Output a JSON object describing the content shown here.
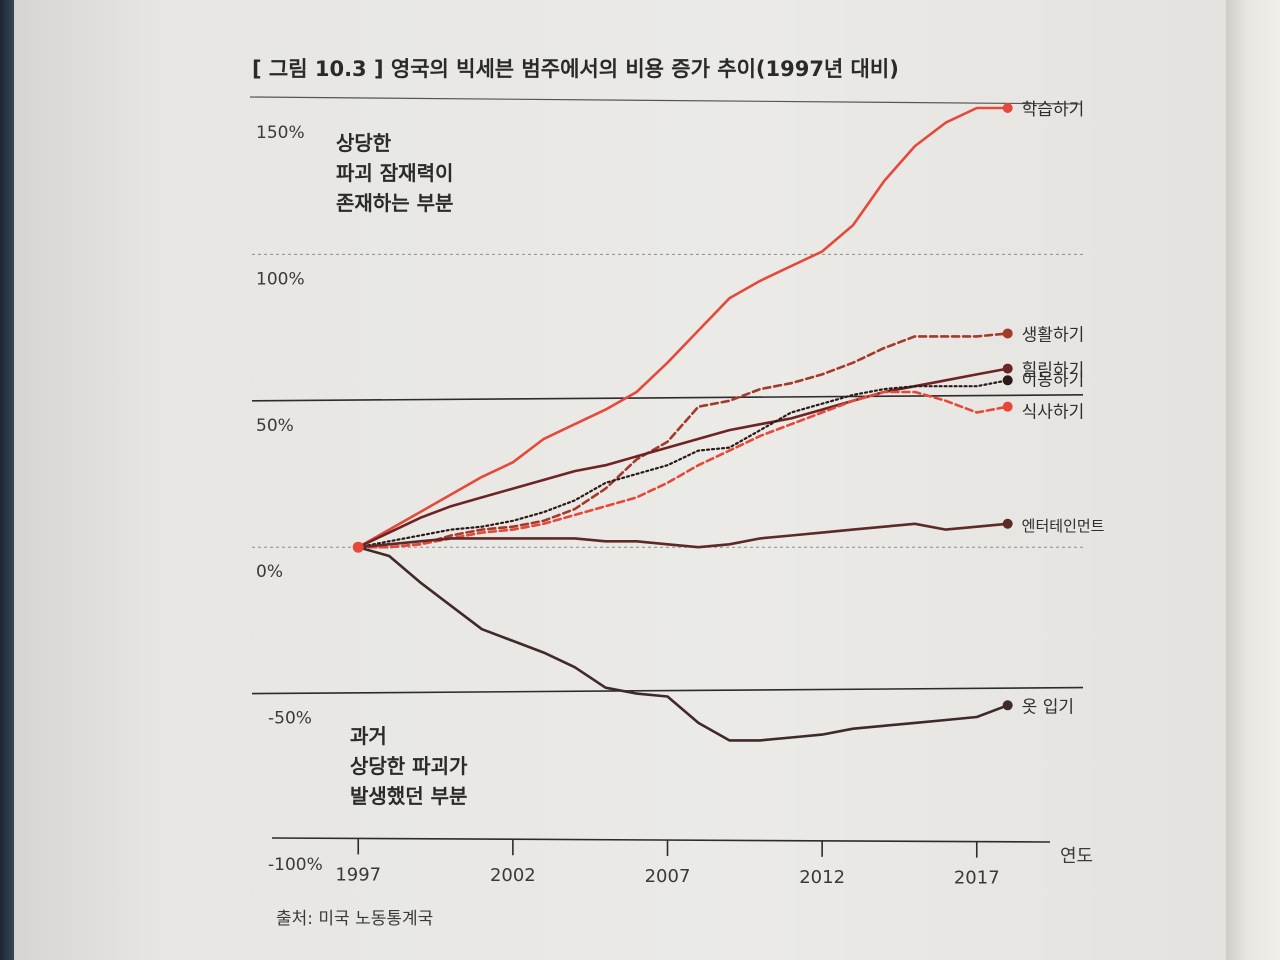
{
  "figure_title": "[ 그림 10.3 ] 영국의 빅세븐 범주에서의 비용 증가 추이(1997년 대비)",
  "source_note": "출처: 미국 노동통계국",
  "annotations": {
    "upper": [
      "상당한",
      "파괴 잠재력이",
      "존재하는 부분"
    ],
    "lower": [
      "과거",
      "상당한 파괴가",
      "발생했던 부분"
    ]
  },
  "colors": {
    "learning": "#e5493a",
    "living": "#a33a2c",
    "healing": "#6e2424",
    "moving": "#2b1a18",
    "eating": "#e5493a",
    "entertainment": "#5d2a25",
    "clothing": "#3e2a2a",
    "axis": "#2c2c2c",
    "grid": "#8d8d8d"
  },
  "chart_data": {
    "type": "line",
    "title": "[ 그림 10.3 ] 영국의 빅세븐 범주에서의 비용 증가 추이(1997년 대비)",
    "xlabel": "연도",
    "ylabel": "",
    "xlim": [
      1993.5,
      2020.5
    ],
    "ylim": [
      -100,
      150
    ],
    "x_ticks": [
      1997,
      2002,
      2007,
      2012,
      2017
    ],
    "x_tick_labels": [
      "1997",
      "2002",
      "2007",
      "2012",
      "2017"
    ],
    "y_ticks": [
      150,
      100,
      50,
      0,
      -50,
      -100
    ],
    "y_tick_labels": [
      "150%",
      "100%",
      "50%",
      "0%",
      "-50%",
      "-100%"
    ],
    "reference_lines": [
      {
        "value": 100,
        "style": "dotted"
      },
      {
        "value": 0,
        "style": "dotted"
      },
      {
        "value": 50,
        "style": "solid"
      },
      {
        "value": -50,
        "style": "solid"
      }
    ],
    "series": [
      {
        "name": "학습하기",
        "color_key": "learning",
        "dash": "solid",
        "x": [
          1997,
          1998,
          1999,
          2000,
          2001,
          2002,
          2003,
          2004,
          2005,
          2006,
          2007,
          2008,
          2009,
          2010,
          2011,
          2012,
          2013,
          2014,
          2015,
          2016,
          2017,
          2018
        ],
        "y": [
          0,
          6,
          12,
          18,
          24,
          29,
          37,
          42,
          47,
          53,
          63,
          74,
          85,
          91,
          96,
          101,
          110,
          125,
          137,
          145,
          150,
          150
        ]
      },
      {
        "name": "생활하기",
        "color_key": "living",
        "dash": "dashed",
        "x": [
          1997,
          1998,
          1999,
          2000,
          2001,
          2002,
          2003,
          2004,
          2005,
          2006,
          2007,
          2008,
          2009,
          2010,
          2011,
          2012,
          2013,
          2014,
          2015,
          2016,
          2017,
          2018
        ],
        "y": [
          0,
          0,
          1,
          4,
          6,
          7,
          9,
          13,
          20,
          30,
          36,
          48,
          50,
          54,
          56,
          59,
          63,
          68,
          72,
          72,
          72,
          73
        ]
      },
      {
        "name": "힐링하기",
        "color_key": "healing",
        "dash": "solid",
        "x": [
          1997,
          1998,
          1999,
          2000,
          2001,
          2002,
          2003,
          2004,
          2005,
          2006,
          2007,
          2008,
          2009,
          2010,
          2011,
          2012,
          2013,
          2014,
          2015,
          2016,
          2017,
          2018
        ],
        "y": [
          0,
          5,
          10,
          14,
          17,
          20,
          23,
          26,
          28,
          31,
          34,
          37,
          40,
          42,
          44,
          47,
          50,
          53,
          55,
          57,
          59,
          61
        ]
      },
      {
        "name": "이동하기",
        "color_key": "moving",
        "dash": "dotted",
        "x": [
          1997,
          1998,
          1999,
          2000,
          2001,
          2002,
          2003,
          2004,
          2005,
          2006,
          2007,
          2008,
          2009,
          2010,
          2011,
          2012,
          2013,
          2014,
          2015,
          2016,
          2017,
          2018
        ],
        "y": [
          0,
          2,
          4,
          6,
          7,
          9,
          12,
          16,
          22,
          25,
          28,
          33,
          34,
          40,
          46,
          49,
          52,
          54,
          55,
          55,
          55,
          57
        ]
      },
      {
        "name": "식사하기",
        "color_key": "eating",
        "dash": "dashed",
        "x": [
          1997,
          1998,
          1999,
          2000,
          2001,
          2002,
          2003,
          2004,
          2005,
          2006,
          2007,
          2008,
          2009,
          2010,
          2011,
          2012,
          2013,
          2014,
          2015,
          2016,
          2017,
          2018
        ],
        "y": [
          0,
          0,
          1,
          3,
          5,
          6,
          8,
          11,
          14,
          17,
          22,
          28,
          33,
          38,
          42,
          46,
          50,
          53,
          53,
          50,
          46,
          48
        ]
      },
      {
        "name": "엔터테인먼트",
        "color_key": "entertainment",
        "dash": "solid",
        "x": [
          1997,
          1998,
          1999,
          2000,
          2001,
          2002,
          2003,
          2004,
          2005,
          2006,
          2007,
          2008,
          2009,
          2010,
          2011,
          2012,
          2013,
          2014,
          2015,
          2016,
          2017,
          2018
        ],
        "y": [
          0,
          1,
          2,
          3,
          3,
          3,
          3,
          3,
          2,
          2,
          1,
          0,
          1,
          3,
          4,
          5,
          6,
          7,
          8,
          6,
          7,
          8
        ]
      },
      {
        "name": "옷 입기",
        "color_key": "clothing",
        "dash": "solid",
        "x": [
          1997,
          1998,
          1999,
          2000,
          2001,
          2002,
          2003,
          2004,
          2005,
          2006,
          2007,
          2008,
          2009,
          2010,
          2011,
          2012,
          2013,
          2014,
          2015,
          2016,
          2017,
          2018
        ],
        "y": [
          0,
          -3,
          -12,
          -20,
          -28,
          -32,
          -36,
          -41,
          -48,
          -50,
          -51,
          -60,
          -66,
          -66,
          -65,
          -64,
          -62,
          -61,
          -60,
          -59,
          -58,
          -54
        ]
      }
    ]
  }
}
